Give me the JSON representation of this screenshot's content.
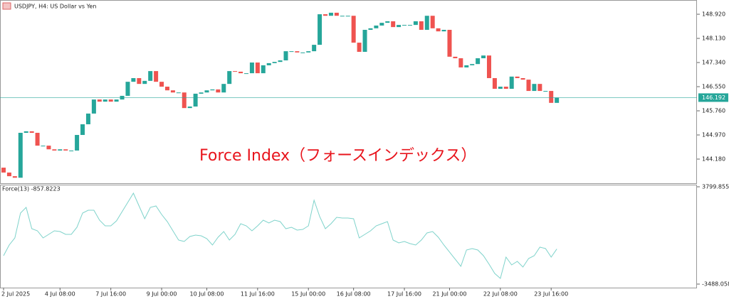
{
  "chart_data": [
    {
      "type": "candlestick",
      "title": "USDJPY, H4:  US Dollar vs Yen",
      "annotation": "Force Index（フォースインデックス）",
      "up_color": "#26a69a",
      "down_color": "#ef5350",
      "open": [
        143.9,
        143.74,
        143.62,
        143.57,
        145.04,
        145.09,
        145.04,
        144.62,
        144.62,
        144.5,
        144.46,
        144.5,
        144.46,
        144.46,
        144.97,
        145.32,
        145.67,
        146.13,
        146.06,
        146.13,
        146.06,
        146.13,
        146.25,
        146.71,
        146.83,
        146.64,
        146.74,
        147.06,
        146.71,
        146.55,
        146.43,
        146.36,
        146.36,
        145.85,
        145.9,
        146.32,
        146.36,
        146.43,
        146.46,
        146.36,
        146.64,
        147.06,
        147.04,
        146.99,
        146.99,
        147.34,
        146.99,
        147.25,
        147.32,
        147.36,
        147.41,
        147.71,
        147.71,
        147.67,
        147.67,
        147.71,
        147.92,
        148.92,
        148.87,
        148.97,
        148.87,
        148.87,
        148.87,
        147.99,
        147.69,
        148.41,
        148.46,
        148.55,
        148.64,
        148.69,
        148.5,
        148.57,
        148.57,
        148.57,
        148.69,
        148.41,
        148.87,
        148.46,
        148.36,
        148.41,
        147.53,
        147.48,
        147.18,
        147.25,
        147.29,
        147.48,
        147.57,
        146.83,
        146.48,
        146.55,
        146.48,
        146.88,
        146.83,
        146.78,
        146.41,
        146.64,
        146.41,
        146.41,
        146.02
      ],
      "close": [
        143.74,
        143.62,
        143.57,
        145.04,
        145.09,
        145.04,
        144.62,
        144.62,
        144.5,
        144.46,
        144.5,
        144.46,
        144.46,
        144.97,
        145.32,
        145.67,
        146.13,
        146.06,
        146.13,
        146.06,
        146.13,
        146.25,
        146.71,
        146.83,
        146.64,
        146.74,
        147.06,
        146.71,
        146.55,
        146.43,
        146.36,
        146.36,
        145.85,
        145.9,
        146.32,
        146.36,
        146.43,
        146.46,
        146.36,
        146.64,
        147.06,
        147.04,
        146.99,
        146.99,
        147.34,
        146.99,
        147.25,
        147.32,
        147.36,
        147.41,
        147.71,
        147.71,
        147.67,
        147.67,
        147.71,
        147.92,
        148.92,
        148.87,
        148.97,
        148.87,
        148.87,
        148.87,
        147.99,
        147.69,
        148.41,
        148.46,
        148.55,
        148.64,
        148.69,
        148.5,
        148.57,
        148.57,
        148.57,
        148.69,
        148.41,
        148.87,
        148.46,
        148.36,
        148.41,
        147.53,
        147.48,
        147.18,
        147.25,
        147.29,
        147.48,
        147.57,
        146.83,
        146.48,
        146.55,
        146.48,
        146.88,
        146.83,
        146.78,
        146.41,
        146.64,
        146.41,
        146.41,
        146.02,
        146.19
      ],
      "ylim": [
        143.39,
        149.27
      ],
      "yticks": [
        {
          "value": 148.92,
          "label": "148.920"
        },
        {
          "value": 148.13,
          "label": "148.130"
        },
        {
          "value": 147.34,
          "label": "147.340"
        },
        {
          "value": 146.55,
          "label": "146.550"
        },
        {
          "value": 145.76,
          "label": "145.760"
        },
        {
          "value": 144.97,
          "label": "144.970"
        },
        {
          "value": 144.18,
          "label": "144.180"
        }
      ],
      "current_price": 146.192,
      "current_price_color": "#26a69a",
      "xticks": [
        {
          "value": 0,
          "label": "2 Jul 2025"
        },
        {
          "value": 10,
          "label": "4 Jul 08:00"
        },
        {
          "value": 19,
          "label": "7 Jul 16:00"
        },
        {
          "value": 28,
          "label": "9 Jul 00:00"
        },
        {
          "value": 36,
          "label": "10 Jul 08:00"
        },
        {
          "value": 45,
          "label": "11 Jul 16:00"
        },
        {
          "value": 54,
          "label": "15 Jul 00:00"
        },
        {
          "value": 62,
          "label": "16 Jul 08:00"
        },
        {
          "value": 71,
          "label": "17 Jul 16:00"
        },
        {
          "value": 79,
          "label": "21 Jul 00:00"
        },
        {
          "value": 88,
          "label": "22 Jul 08:00"
        },
        {
          "value": 97,
          "label": "23 Jul 16:00"
        }
      ]
    },
    {
      "type": "line",
      "title": "Force(13) -857.8223",
      "color": "#7fd3cb",
      "values": [
        -1360,
        -562,
        -30,
        1832,
        2257,
        661,
        502,
        -30,
        236,
        502,
        448,
        236,
        236,
        768,
        1832,
        2044,
        2044,
        1300,
        874,
        874,
        1246,
        1938,
        2630,
        3321,
        2364,
        1406,
        2257,
        2364,
        1725,
        1193,
        502,
        -190,
        -296,
        76,
        182,
        129,
        -84,
        -562,
        23,
        448,
        -190,
        236,
        1034,
        874,
        502,
        874,
        1300,
        1087,
        1300,
        1193,
        661,
        768,
        555,
        608,
        874,
        2789,
        1566,
        661,
        1034,
        1512,
        1459,
        1459,
        1406,
        -30,
        236,
        502,
        874,
        1034,
        1193,
        -190,
        -403,
        -296,
        -456,
        -562,
        -190,
        342,
        448,
        23,
        -562,
        -1094,
        -1626,
        -2158,
        -935,
        -828,
        -935,
        -1360,
        -1999,
        -2690,
        -3063,
        -1467,
        -2052,
        -1786,
        -2212,
        -1573,
        -1360,
        -722,
        -828,
        -1467,
        -857.8223
      ],
      "ylim": [
        -3488.058,
        3799.8555
      ],
      "yticks": [
        3799.8555,
        {
          "value": -3488.058,
          "label": "-3488.0580"
        }
      ]
    }
  ]
}
